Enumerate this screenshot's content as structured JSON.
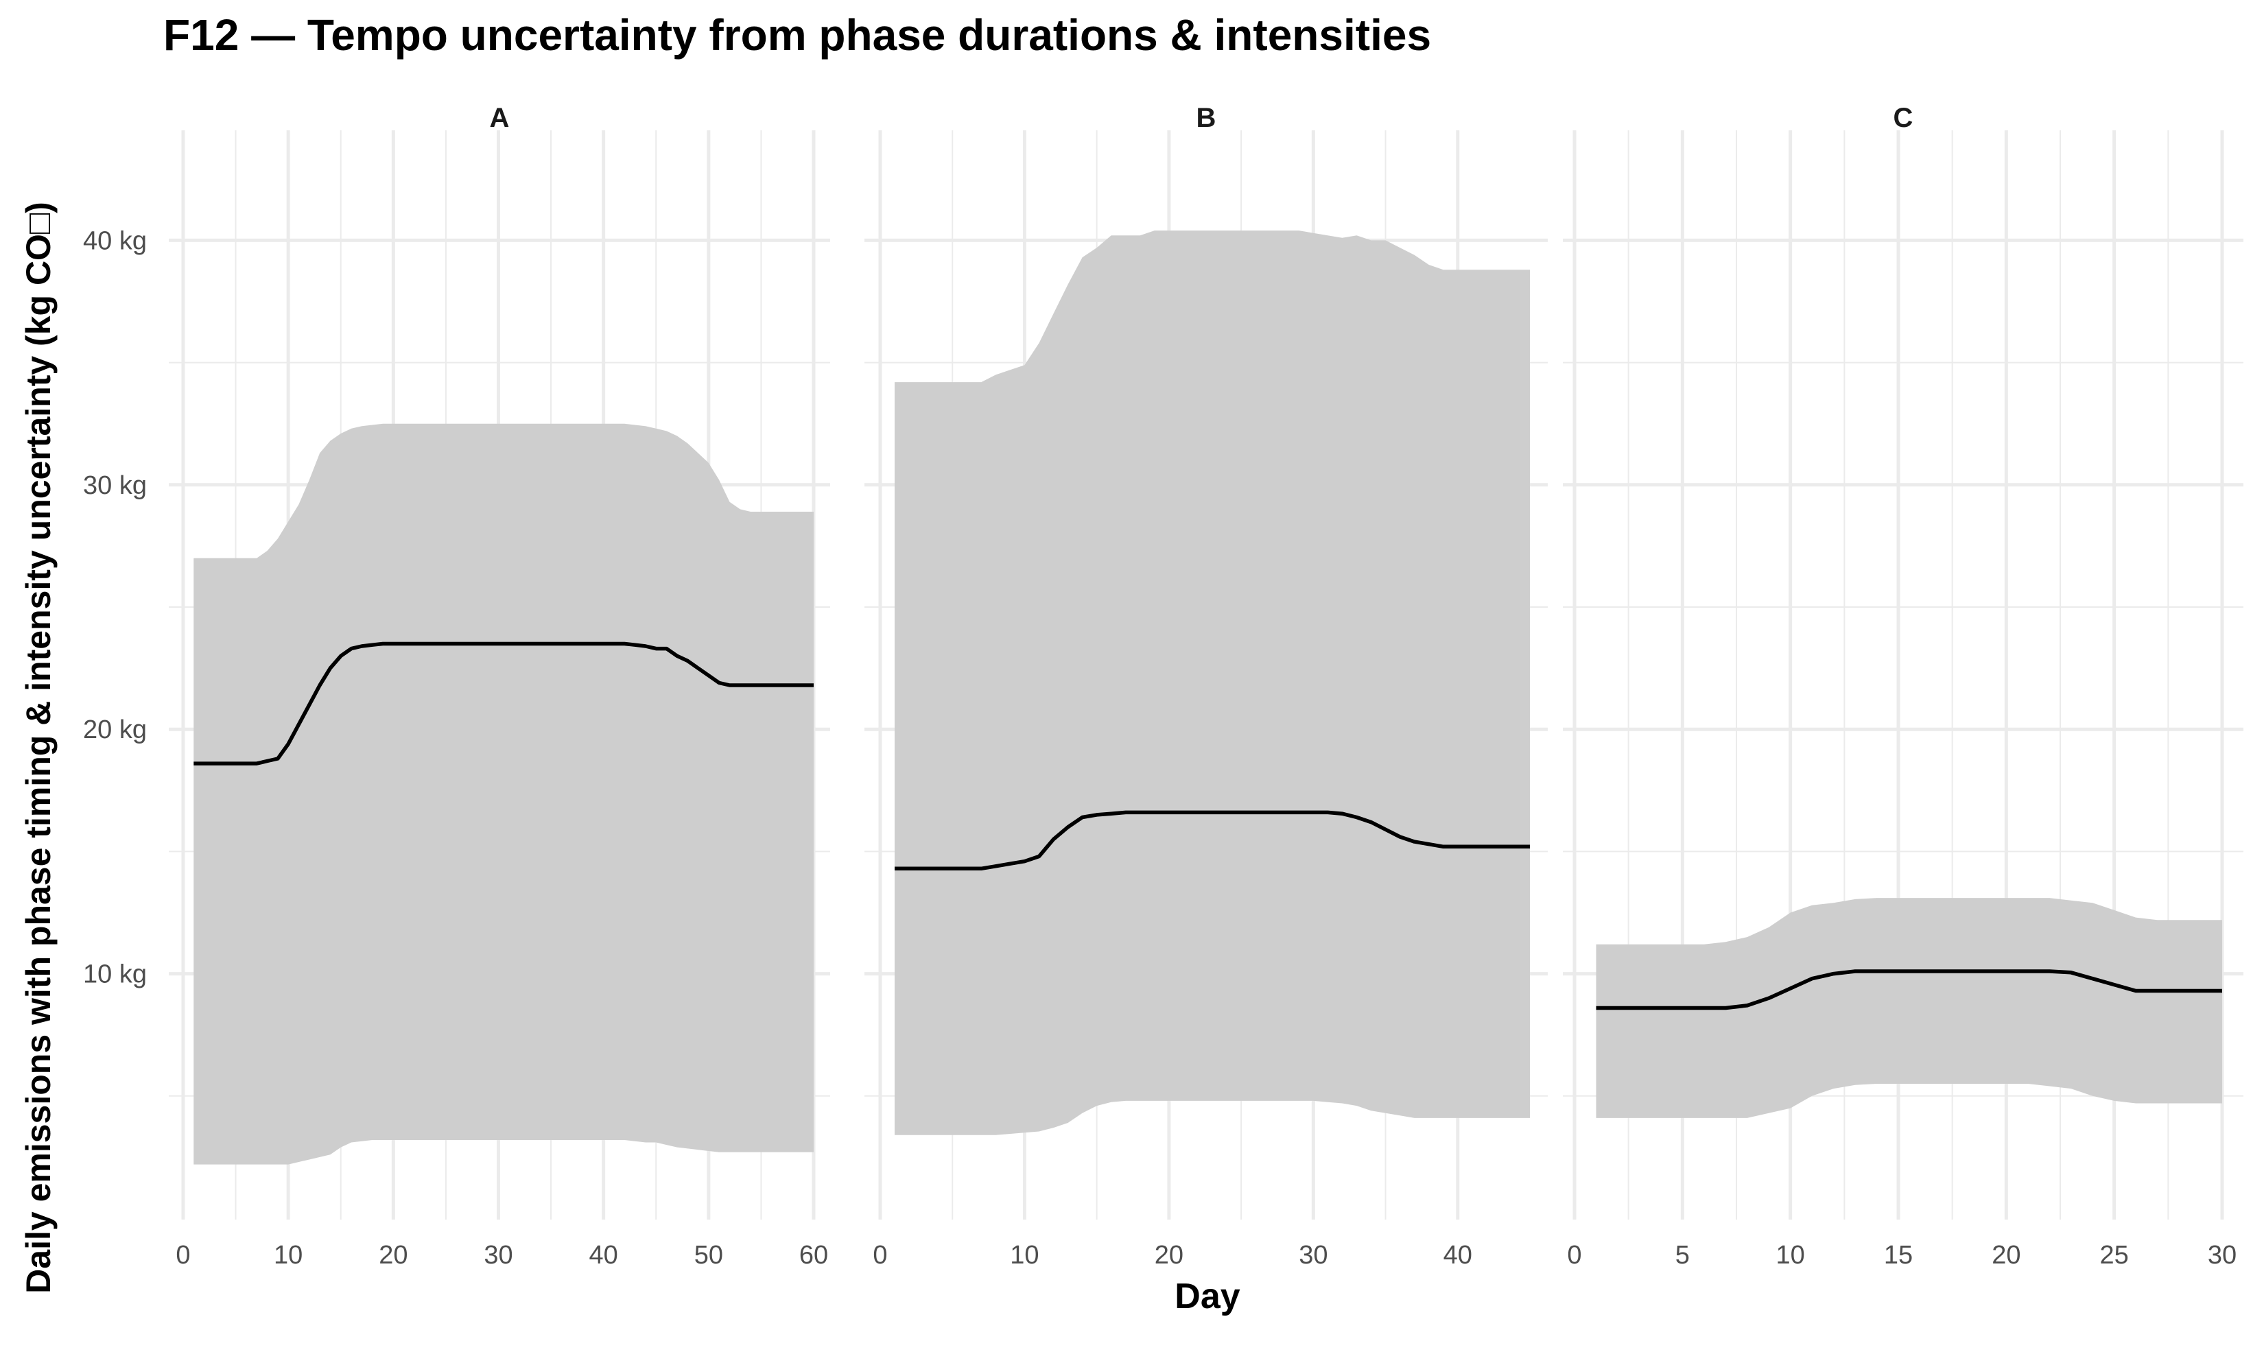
{
  "chart_data": {
    "type": "area",
    "title": "F12 — Tempo uncertainty from phase durations & intensities",
    "xlabel": "Day",
    "ylabel": "Daily emissions with phase timing & intensity uncertainty (kg CO□)",
    "ylim": [
      0,
      42
    ],
    "y_ticks": [
      10,
      20,
      30,
      40
    ],
    "y_tick_labels": [
      "10 kg",
      "20 kg",
      "30 kg",
      "40 kg"
    ],
    "grid": true,
    "legend": "none",
    "colors": {
      "band": "#cccccc",
      "line": "#000000",
      "grid": "#ebebeb"
    },
    "panels": [
      {
        "name": "A",
        "xlim": [
          0,
          60
        ],
        "x_ticks": [
          0,
          10,
          20,
          30,
          40,
          50,
          60
        ],
        "x": [
          1,
          2,
          3,
          4,
          5,
          6,
          7,
          8,
          9,
          10,
          11,
          12,
          13,
          14,
          15,
          16,
          17,
          18,
          19,
          20,
          21,
          22,
          23,
          24,
          25,
          26,
          27,
          28,
          29,
          30,
          31,
          32,
          33,
          34,
          35,
          36,
          37,
          38,
          39,
          40,
          41,
          42,
          43,
          44,
          45,
          46,
          47,
          48,
          49,
          50,
          51,
          52,
          53,
          54,
          55,
          56,
          57,
          58,
          59,
          60
        ],
        "mean": [
          18.6,
          18.6,
          18.6,
          18.6,
          18.6,
          18.6,
          18.6,
          18.7,
          18.8,
          19.4,
          20.2,
          21.0,
          21.8,
          22.5,
          23.0,
          23.3,
          23.4,
          23.45,
          23.5,
          23.5,
          23.5,
          23.5,
          23.5,
          23.5,
          23.5,
          23.5,
          23.5,
          23.5,
          23.5,
          23.5,
          23.5,
          23.5,
          23.5,
          23.5,
          23.5,
          23.5,
          23.5,
          23.5,
          23.5,
          23.5,
          23.5,
          23.5,
          23.45,
          23.4,
          23.3,
          23.3,
          23.0,
          22.8,
          22.5,
          22.2,
          21.9,
          21.8,
          21.8,
          21.8,
          21.8,
          21.8,
          21.8,
          21.8,
          21.8,
          21.8
        ],
        "lower": [
          2.2,
          2.2,
          2.2,
          2.2,
          2.2,
          2.2,
          2.2,
          2.2,
          2.2,
          2.2,
          2.3,
          2.4,
          2.5,
          2.6,
          2.9,
          3.1,
          3.15,
          3.2,
          3.2,
          3.2,
          3.2,
          3.2,
          3.2,
          3.2,
          3.2,
          3.2,
          3.2,
          3.2,
          3.2,
          3.2,
          3.2,
          3.2,
          3.2,
          3.2,
          3.2,
          3.2,
          3.2,
          3.2,
          3.2,
          3.2,
          3.2,
          3.2,
          3.15,
          3.1,
          3.1,
          3.0,
          2.9,
          2.85,
          2.8,
          2.75,
          2.7,
          2.7,
          2.7,
          2.7,
          2.7,
          2.7,
          2.7,
          2.7,
          2.7,
          2.7
        ],
        "upper": [
          27.0,
          27.0,
          27.0,
          27.0,
          27.0,
          27.0,
          27.0,
          27.3,
          27.8,
          28.5,
          29.2,
          30.2,
          31.3,
          31.8,
          32.1,
          32.3,
          32.4,
          32.45,
          32.5,
          32.5,
          32.5,
          32.5,
          32.5,
          32.5,
          32.5,
          32.5,
          32.5,
          32.5,
          32.5,
          32.5,
          32.5,
          32.5,
          32.5,
          32.5,
          32.5,
          32.5,
          32.5,
          32.5,
          32.5,
          32.5,
          32.5,
          32.5,
          32.45,
          32.4,
          32.3,
          32.2,
          32.0,
          31.7,
          31.3,
          30.9,
          30.2,
          29.3,
          29.0,
          28.9,
          28.9,
          28.9,
          28.9,
          28.9,
          28.9,
          28.9
        ]
      },
      {
        "name": "B",
        "xlim": [
          0,
          45
        ],
        "x_ticks": [
          0,
          10,
          20,
          30,
          40
        ],
        "x": [
          1,
          2,
          3,
          4,
          5,
          6,
          7,
          8,
          9,
          10,
          11,
          12,
          13,
          14,
          15,
          16,
          17,
          18,
          19,
          20,
          21,
          22,
          23,
          24,
          25,
          26,
          27,
          28,
          29,
          30,
          31,
          32,
          33,
          34,
          35,
          36,
          37,
          38,
          39,
          40,
          41,
          42,
          43,
          44,
          45
        ],
        "mean": [
          14.3,
          14.3,
          14.3,
          14.3,
          14.3,
          14.3,
          14.3,
          14.4,
          14.5,
          14.6,
          14.8,
          15.5,
          16.0,
          16.4,
          16.5,
          16.55,
          16.6,
          16.6,
          16.6,
          16.6,
          16.6,
          16.6,
          16.6,
          16.6,
          16.6,
          16.6,
          16.6,
          16.6,
          16.6,
          16.6,
          16.6,
          16.55,
          16.4,
          16.2,
          15.9,
          15.6,
          15.4,
          15.3,
          15.2,
          15.2,
          15.2,
          15.2,
          15.2,
          15.2,
          15.2
        ],
        "lower": [
          3.4,
          3.4,
          3.4,
          3.4,
          3.4,
          3.4,
          3.4,
          3.4,
          3.45,
          3.5,
          3.55,
          3.7,
          3.9,
          4.3,
          4.6,
          4.75,
          4.8,
          4.8,
          4.8,
          4.8,
          4.8,
          4.8,
          4.8,
          4.8,
          4.8,
          4.8,
          4.8,
          4.8,
          4.8,
          4.8,
          4.75,
          4.7,
          4.6,
          4.4,
          4.3,
          4.2,
          4.1,
          4.1,
          4.1,
          4.1,
          4.1,
          4.1,
          4.1,
          4.1,
          4.1
        ],
        "upper": [
          34.2,
          34.2,
          34.2,
          34.2,
          34.2,
          34.2,
          34.2,
          34.5,
          34.7,
          34.9,
          35.8,
          37.0,
          38.2,
          39.3,
          39.7,
          40.2,
          40.2,
          40.2,
          40.4,
          40.4,
          40.4,
          40.4,
          40.4,
          40.4,
          40.4,
          40.4,
          40.4,
          40.4,
          40.4,
          40.3,
          40.2,
          40.1,
          40.2,
          40.0,
          40.0,
          39.7,
          39.4,
          39.0,
          38.8,
          38.8,
          38.8,
          38.8,
          38.8,
          38.8,
          38.8
        ]
      },
      {
        "name": "C",
        "xlim": [
          0,
          30
        ],
        "x_ticks": [
          0,
          5,
          10,
          15,
          20,
          25,
          30
        ],
        "x": [
          1,
          2,
          3,
          4,
          5,
          6,
          7,
          8,
          9,
          10,
          11,
          12,
          13,
          14,
          15,
          16,
          17,
          18,
          19,
          20,
          21,
          22,
          23,
          24,
          25,
          26,
          27,
          28,
          29,
          30
        ],
        "mean": [
          8.6,
          8.6,
          8.6,
          8.6,
          8.6,
          8.6,
          8.6,
          8.7,
          9.0,
          9.4,
          9.8,
          10.0,
          10.1,
          10.1,
          10.1,
          10.1,
          10.1,
          10.1,
          10.1,
          10.1,
          10.1,
          10.1,
          10.05,
          9.8,
          9.55,
          9.3,
          9.3,
          9.3,
          9.3,
          9.3
        ],
        "lower": [
          4.1,
          4.1,
          4.1,
          4.1,
          4.1,
          4.1,
          4.1,
          4.1,
          4.3,
          4.5,
          5.0,
          5.3,
          5.45,
          5.5,
          5.5,
          5.5,
          5.5,
          5.5,
          5.5,
          5.5,
          5.5,
          5.4,
          5.3,
          5.0,
          4.8,
          4.7,
          4.7,
          4.7,
          4.7,
          4.7
        ],
        "upper": [
          11.2,
          11.2,
          11.2,
          11.2,
          11.2,
          11.2,
          11.3,
          11.5,
          11.9,
          12.5,
          12.8,
          12.9,
          13.05,
          13.1,
          13.1,
          13.1,
          13.1,
          13.1,
          13.1,
          13.1,
          13.1,
          13.1,
          13.0,
          12.9,
          12.6,
          12.3,
          12.2,
          12.2,
          12.2,
          12.2
        ]
      }
    ]
  }
}
